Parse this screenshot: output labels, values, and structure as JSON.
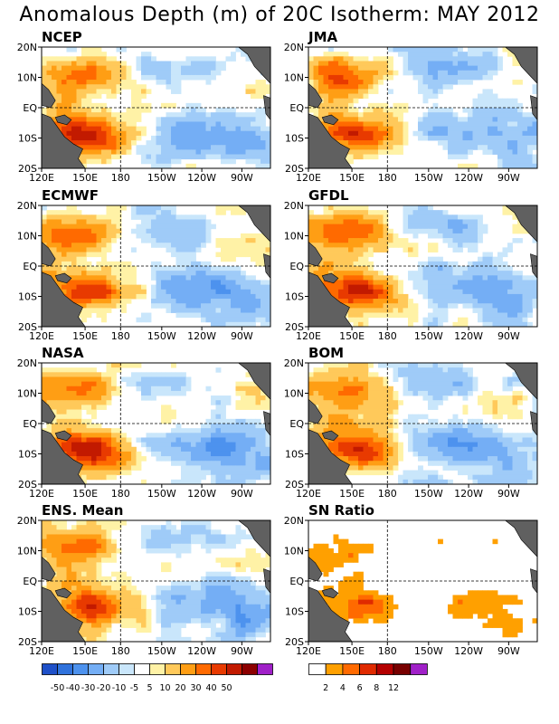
{
  "title": "Anomalous Depth (m) of 20C Isotherm: MAY 2012",
  "lat_labels": [
    "20N",
    "10N",
    "EQ",
    "10S",
    "20S"
  ],
  "lon_labels": [
    "120E",
    "150E",
    "180",
    "150W",
    "120W",
    "90W"
  ],
  "panels": [
    {
      "title": "NCEP",
      "kind": "anomaly"
    },
    {
      "title": "JMA",
      "kind": "anomaly"
    },
    {
      "title": "ECMWF",
      "kind": "anomaly"
    },
    {
      "title": "GFDL",
      "kind": "anomaly"
    },
    {
      "title": "NASA",
      "kind": "anomaly"
    },
    {
      "title": "BOM",
      "kind": "anomaly"
    },
    {
      "title": "ENS. Mean",
      "kind": "anomaly"
    },
    {
      "title": "SN Ratio",
      "kind": "snr"
    }
  ],
  "anomaly_colorbar": {
    "colors": [
      "#1e50c8",
      "#2f72dc",
      "#4d92ee",
      "#74aef5",
      "#9fcbf8",
      "#c9e6fb",
      "#ffffff",
      "#fff2a6",
      "#ffc95a",
      "#ff9e14",
      "#ff6a00",
      "#e83a00",
      "#c21a00",
      "#8c0000",
      "#a020c8"
    ],
    "labels": [
      "-50",
      "-40",
      "-30",
      "-20",
      "-10",
      "-5",
      "5",
      "10",
      "20",
      "30",
      "40",
      "50"
    ]
  },
  "snr_colorbar": {
    "colors": [
      "#ffffff",
      "#ffa000",
      "#ff6a00",
      "#e02a00",
      "#b40000",
      "#780000",
      "#a020c8"
    ],
    "labels": [
      "2",
      "4",
      "6",
      "8",
      "12"
    ]
  },
  "chart_data": {
    "type": "heatmap",
    "title": "Anomalous Depth (m) of 20C Isotherm: MAY 2012",
    "variable": "Anomalous depth of 20C isotherm",
    "units": "m",
    "x_range": [
      "120E",
      "80W"
    ],
    "y_range": [
      "20S",
      "20N"
    ],
    "x_ticks": [
      "120E",
      "150E",
      "180",
      "150W",
      "120W",
      "90W"
    ],
    "y_ticks": [
      "20N",
      "10N",
      "EQ",
      "10S",
      "20S"
    ],
    "panels": [
      "NCEP",
      "JMA",
      "ECMWF",
      "GFDL",
      "NASA",
      "BOM",
      "ENS. Mean",
      "SN Ratio"
    ],
    "anomaly_levels": [
      -50,
      -40,
      -30,
      -20,
      -10,
      -5,
      5,
      10,
      20,
      30,
      40,
      50
    ],
    "snr_levels": [
      2,
      4,
      6,
      8,
      12
    ],
    "features": [
      {
        "region": "western Pacific 5N-15N, 130E-170W",
        "sign": "positive",
        "magnitude": "20-30"
      },
      {
        "region": "western Pacific 5S-15S, 140E-180",
        "sign": "positive",
        "magnitude": "30-50"
      },
      {
        "region": "central/eastern Pacific 0-15S, 160W-90W",
        "sign": "negative",
        "magnitude": "-10 to -30"
      },
      {
        "region": "central Pacific 5N-18N, 170W-110W",
        "sign": "negative",
        "magnitude": "-5 to -20"
      }
    ]
  }
}
